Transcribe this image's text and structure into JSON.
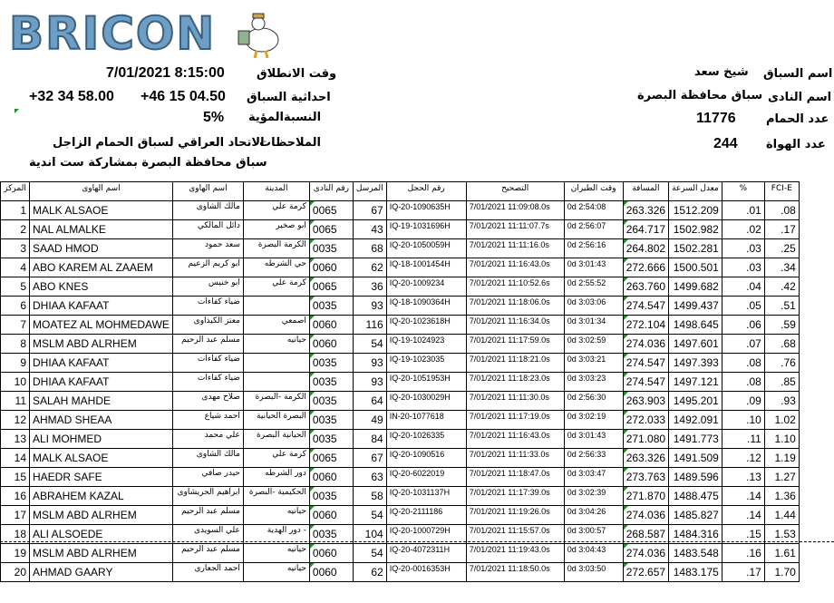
{
  "logo": {
    "text": "BRICON",
    "mascot": "pigeon-mascot"
  },
  "race": {
    "start_label": "وقت الانطلاق",
    "start_value": "7/01/2021 8:15:00",
    "coords_label": "احداثية السباق",
    "coord1": "+46 15 04.50",
    "coord2": "+32 34 58.00",
    "percent_label": "النسبةالمؤية",
    "percent_value": "5%",
    "notes_label": "الملاحظات",
    "notes_line1": "الاتحاد العراقي لسباق الحمام الزاجل",
    "notes_line2": "سباق محافظة البصرة بمشاركة ست اندية",
    "race_name_label": "اسم السباق",
    "race_name_value": "شيخ سعد",
    "club_name_label": "اسم النادى",
    "club_name_value": "سباق محافظة البصرة",
    "birds_label": "عدد الحمام",
    "birds_value": "11776",
    "fanciers_label": "عدد الهواة",
    "fanciers_value": "244"
  },
  "table": {
    "headers": [
      "المركز",
      "اسم الهاوى",
      "اسم الهاوى",
      "المدينة",
      "رقم النادى",
      "المرسل",
      "رقم الحجل",
      "التصحيح",
      "وقت الطيران",
      "المسافة",
      "معدل السرعة",
      "%",
      "FCI-E"
    ],
    "rows": [
      [
        "1",
        "MALK ALSAOE",
        "مالك الشاوى",
        "كرمة علي",
        "0065",
        "67",
        "IQ-20-1090635H",
        "7/01/2021 11:09:08.0s",
        "0d 2:54:08",
        "263.326",
        "1512.209",
        ".01",
        ".08"
      ],
      [
        "2",
        "NAL ALMALKE",
        "دائل المالكي",
        "ابو صخير",
        "0065",
        "43",
        "IQ-19-1031696H",
        "7/01/2021 11:11:07.7s",
        "0d 2:56:07",
        "264.717",
        "1502.982",
        ".02",
        ".17"
      ],
      [
        "3",
        "SAAD HMOD",
        "سعد حمود",
        "الكرمة البصرة",
        "0035",
        "68",
        "IQ-20-1050059H",
        "7/01/2021 11:11:16.0s",
        "0d 2:56:16",
        "264.802",
        "1502.281",
        ".03",
        ".25"
      ],
      [
        "4",
        "ABO KAREM AL ZAAEM",
        "ابو كريم الزعيم",
        "حي الشرطه",
        "0060",
        "62",
        "IQ-18-1001454H",
        "7/01/2021 11:16:43.0s",
        "0d 3:01:43",
        "272.666",
        "1500.501",
        ".03",
        ".34"
      ],
      [
        "5",
        "ABO KNES",
        "ابو خنيس",
        "كرمة علي",
        "0065",
        "36",
        "IQ-20-1009234",
        "7/01/2021 11:10:52.6s",
        "0d 2:55:52",
        "263.760",
        "1499.682",
        ".04",
        ".42"
      ],
      [
        "6",
        "DHIAA KAFAAT",
        "ضياء كفاءات",
        "",
        "0035",
        "93",
        "IQ-18-1090364H",
        "7/01/2021 11:18:06.0s",
        "0d 3:03:06",
        "274.547",
        "1499.437",
        ".05",
        ".51"
      ],
      [
        "7",
        "MOATEZ AL MOHMEDAWE",
        "معتز الكيذاوى",
        "اصمعي",
        "0060",
        "116",
        "IQ-20-1023618H",
        "7/01/2021 11:16:34.0s",
        "0d 3:01:34",
        "272.104",
        "1498.645",
        ".06",
        ".59"
      ],
      [
        "8",
        "MSLM ABD ALRHEM",
        "مسلم عبد الرحيم",
        "حيانيه",
        "0060",
        "54",
        "IQ-19-1024923",
        "7/01/2021 11:17:59.0s",
        "0d 3:02:59",
        "274.036",
        "1497.601",
        ".07",
        ".68"
      ],
      [
        "9",
        "DHIAA KAFAAT",
        "ضياء كفاءات",
        "",
        "0035",
        "93",
        "IQ-19-1023035",
        "7/01/2021 11:18:21.0s",
        "0d 3:03:21",
        "274.547",
        "1497.393",
        ".08",
        ".76"
      ],
      [
        "10",
        "DHIAA KAFAAT",
        "ضياء كفاءات",
        "",
        "0035",
        "93",
        "IQ-20-1051953H",
        "7/01/2021 11:18:23.0s",
        "0d 3:03:23",
        "274.547",
        "1497.121",
        ".08",
        ".85"
      ],
      [
        "11",
        "SALAH MAHDE",
        "صلاح مهدى",
        "الكرمة -البصرة",
        "0035",
        "64",
        "IQ-20-1030029H",
        "7/01/2021 11:11:30.0s",
        "0d 2:56:30",
        "263.903",
        "1495.201",
        ".09",
        ".93"
      ],
      [
        "12",
        "AHMAD SHEAA",
        "احمد شياع",
        "البصرة الحيانية",
        "0035",
        "49",
        "IN-20-1077618",
        "7/01/2021 11:17:19.0s",
        "0d 3:02:19",
        "272.033",
        "1492.091",
        ".10",
        "1.02"
      ],
      [
        "13",
        "ALI MOHMED",
        "علي محمد",
        "الحيانية البصرة",
        "0035",
        "84",
        "IQ-20-1026335",
        "7/01/2021 11:16:43.0s",
        "0d 3:01:43",
        "271.080",
        "1491.773",
        ".11",
        "1.10"
      ],
      [
        "14",
        "MALK ALSAOE",
        "مالك الشاوى",
        "كرمة علي",
        "0065",
        "67",
        "IQ-20-1090516",
        "7/01/2021 11:11:33.0s",
        "0d 2:56:33",
        "263.326",
        "1491.509",
        ".12",
        "1.19"
      ],
      [
        "15",
        "HAEDR SAFE",
        "حيدر صافي",
        "دور الشرطه",
        "0060",
        "63",
        "IQ-20-6022019",
        "7/01/2021 11:18:47.0s",
        "0d 3:03:47",
        "273.763",
        "1489.596",
        ".13",
        "1.27"
      ],
      [
        "16",
        "ABRAHEM KAZAL",
        "ابراهيم الحريشاوى",
        "الحكيمية -البصرة",
        "0035",
        "58",
        "IQ-20-1031137H",
        "7/01/2021 11:17:39.0s",
        "0d 3:02:39",
        "271.870",
        "1488.475",
        ".14",
        "1.36"
      ],
      [
        "17",
        "MSLM ABD ALRHEM",
        "مسلم عبد الرحيم",
        "حيانيه",
        "0060",
        "54",
        "IQ-20-2111186",
        "7/01/2021 11:19:26.0s",
        "0d 3:04:26",
        "274.036",
        "1485.827",
        ".14",
        "1.44"
      ],
      [
        "18",
        "ALI ALSOEDE",
        "علي السويدى",
        "- دور الهدية",
        "0035",
        "104",
        "IQ-20-1000729H",
        "7/01/2021 11:15:57.0s",
        "0d 3:00:57",
        "268.587",
        "1484.316",
        ".15",
        "1.53"
      ],
      [
        "19",
        "MSLM ABD ALRHEM",
        "مسلم عبد الرحيم",
        "حيانيه",
        "0060",
        "54",
        "IQ-20-4072311H",
        "7/01/2021 11:19:43.0s",
        "0d 3:04:43",
        "274.036",
        "1483.548",
        ".16",
        "1.61"
      ],
      [
        "20",
        "AHMAD GAARY",
        "احمد الجعارى",
        "حيانيه",
        "0060",
        "62",
        "IQ-20-0016353H",
        "7/01/2021 11:18:50.0s",
        "0d 3:03:50",
        "272.657",
        "1483.175",
        ".17",
        "1.70"
      ]
    ]
  },
  "colors": {
    "logo": "#6d9ec4",
    "note_marker": "#2a8a2a"
  }
}
